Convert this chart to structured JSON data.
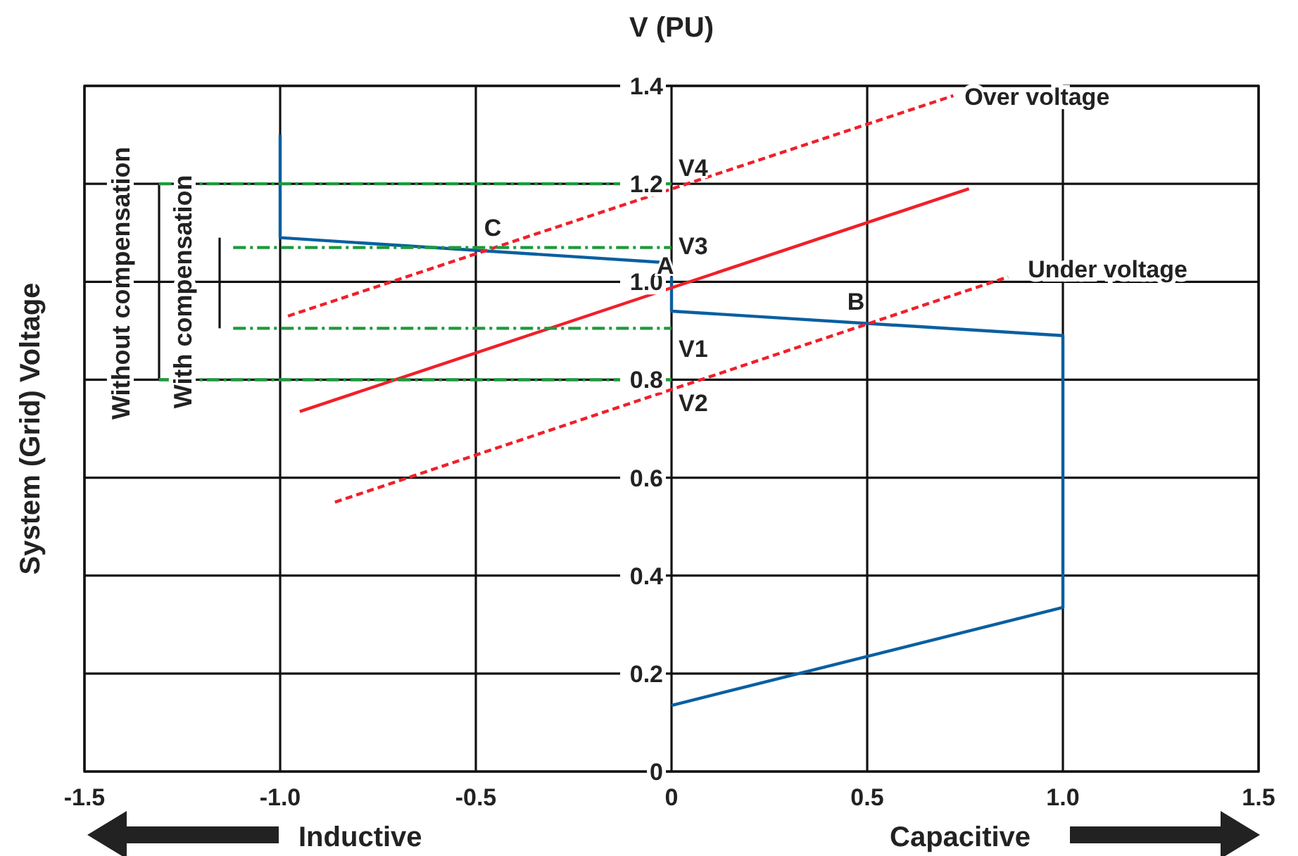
{
  "chart_data": {
    "type": "line",
    "title": "V (PU)",
    "ylabel": "System (Grid) Voltage",
    "xlim": [
      -1.5,
      1.5
    ],
    "ylim": [
      0,
      1.4
    ],
    "xticks": [
      -1.5,
      {
        "value": -1,
        "label": "-1.0"
      },
      -0.5,
      0,
      0.5,
      {
        "value": 1,
        "label": "1.0"
      },
      1.5
    ],
    "yticks": [
      0,
      0.2,
      0.4,
      0.6,
      0.8,
      {
        "value": 1,
        "label": "1.0"
      },
      1.2,
      1.4
    ],
    "grid": true,
    "marker": "none",
    "series": [
      {
        "color": "#0a5fa0",
        "x": [
          -1,
          -1,
          -0.03
        ],
        "values": [
          1.3,
          1.09,
          1.04
        ]
      },
      {
        "color": "#0a5fa0",
        "x": [
          0,
          0,
          1,
          1,
          0
        ],
        "values": [
          1.01,
          0.94,
          0.89,
          0.335,
          0.135
        ]
      },
      {
        "color": "#f0202a",
        "x": [
          -0.95,
          0.76
        ],
        "values": [
          0.735,
          1.19
        ]
      },
      {
        "color": "#f0202a",
        "x": [
          -0.98,
          0.72
        ],
        "values": [
          0.93,
          1.38
        ],
        "line_style": "dotted"
      },
      {
        "color": "#f0202a",
        "x": [
          -0.86,
          0.86
        ],
        "values": [
          0.55,
          1.01
        ],
        "line_style": "dotted"
      },
      {
        "color": "#1e9a3c",
        "x": [
          -1.31,
          0
        ],
        "values": [
          1.2,
          1.2
        ],
        "line_style": "dashed"
      },
      {
        "color": "#1e9a3c",
        "x": [
          -1.12,
          0
        ],
        "values": [
          1.07,
          1.07
        ],
        "line_style": "dashed"
      },
      {
        "color": "#1e9a3c",
        "x": [
          -1.12,
          0
        ],
        "values": [
          0.905,
          0.905
        ],
        "line_style": "dashed"
      },
      {
        "color": "#1e9a3c",
        "x": [
          -1.31,
          0
        ],
        "values": [
          0.8,
          0.8
        ],
        "line_style": "dashed"
      }
    ],
    "annotations": [
      {
        "text": "V4",
        "x": 0,
        "y": 1.2
      },
      {
        "text": "V3",
        "x": 0,
        "y": 1.07
      },
      {
        "text": "A",
        "x": -0.03,
        "y": 1.04
      },
      {
        "text": "V1",
        "x": 0,
        "y": 0.905
      },
      {
        "text": "V2",
        "x": 0,
        "y": 0.8
      },
      {
        "text": "B",
        "x": 0.5,
        "y": 0.91
      },
      {
        "text": "C",
        "x": -0.5,
        "y": 1.07
      },
      {
        "text": "Over voltage",
        "x": 0.72,
        "y": 1.38
      },
      {
        "text": "Under voltage",
        "x": 0.86,
        "y": 1.01
      },
      "Without compensation",
      "With compensation",
      "Inductive",
      "Capacitive"
    ]
  }
}
